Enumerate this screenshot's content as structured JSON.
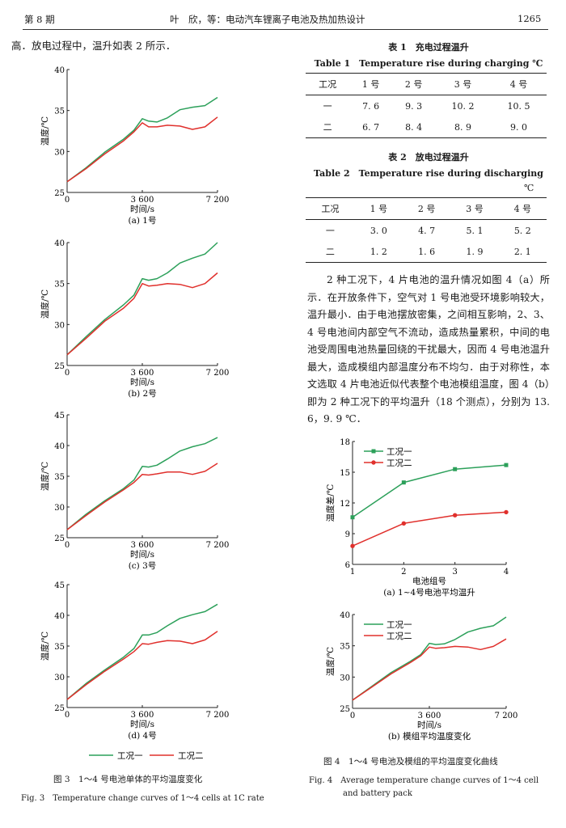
{
  "header": {
    "issue": "第 8 期",
    "authors_title": "叶　欣，等：电动汽车锂离子电池及热加热设计",
    "page": "1265"
  },
  "intro_text": "高．放电过程中，温升如表 2 所示．",
  "table1": {
    "title_cn": "表 1　充电过程温升",
    "title_en": "Table 1　Temperature rise during charging ℃",
    "columns": [
      "工况",
      "1 号",
      "2 号",
      "3 号",
      "4 号"
    ],
    "rows": [
      [
        "一",
        "7. 6",
        "9. 3",
        "10. 2",
        "10. 5"
      ],
      [
        "二",
        "6. 7",
        "8. 4",
        "8. 9",
        "9. 0"
      ]
    ]
  },
  "table2": {
    "title_cn": "表 2　放电过程温升",
    "title_en": "Table 2　Temperature rise during discharging",
    "unit": "℃",
    "columns": [
      "工况",
      "1 号",
      "2 号",
      "3 号",
      "4 号"
    ],
    "rows": [
      [
        "一",
        "3. 0",
        "4. 7",
        "5. 1",
        "5. 2"
      ],
      [
        "二",
        "1. 2",
        "1. 6",
        "1. 9",
        "2. 1"
      ]
    ]
  },
  "paragraph": "2 种工况下，4 片电池的温升情况如图 4（a）所示．在开放条件下，空气对 1 号电池受环境影响较大，温升最小．由于电池摆放密集，之间相互影响，2、3、4 号电池间内部空气不流动，造成热量累积，中间的电池受周围电池热量回绕的干扰最大，因而 4 号电池温升最大，造成模组内部温度分布不均匀．由于对称性，本文选取 4 片电池近似代表整个电池模组温度，图 4（b）即为 2 种工况下的平均温升（18 个测点），分别为 13. 6，9. 9 ℃．",
  "fig3": {
    "legend": [
      "工况一",
      "工况二"
    ],
    "caption_cn": "图 3　1～4 号电池单体的平均温度变化",
    "caption_en": "Fig. 3　Temperature change curves of 1～4 cells at 1C rate"
  },
  "fig4": {
    "caption_cn": "图 4　1～4 号电池及模组的平均温度变化曲线",
    "caption_en_1": "Fig. 4　Average temperature change curves of 1～4 cell",
    "caption_en_2": "and battery pack"
  },
  "colors": {
    "case1": "#2ca05a",
    "case2": "#e0302c",
    "axis": "#222222"
  },
  "chart_data": [
    {
      "id": "fig3a",
      "type": "line",
      "title": "(a) 1号",
      "xlabel": "时间/s",
      "ylabel": "温度/℃",
      "xlim": [
        0,
        7200
      ],
      "ylim": [
        25,
        40
      ],
      "xticks": [
        0,
        3600,
        7200
      ],
      "yticks": [
        25,
        30,
        35,
        40
      ],
      "xtick_labels": [
        "0",
        "3 600",
        "7 200"
      ],
      "series": [
        {
          "name": "工况一",
          "x": [
            0,
            900,
            1800,
            2700,
            3200,
            3600,
            3900,
            4300,
            4800,
            5400,
            6000,
            6600,
            7200
          ],
          "values": [
            26.3,
            28.0,
            29.9,
            31.5,
            32.6,
            34.0,
            33.7,
            33.6,
            34.1,
            35.1,
            35.4,
            35.6,
            36.6
          ]
        },
        {
          "name": "工况二",
          "x": [
            0,
            900,
            1800,
            2700,
            3200,
            3600,
            3900,
            4300,
            4800,
            5400,
            6000,
            6600,
            7200
          ],
          "values": [
            26.3,
            27.9,
            29.7,
            31.3,
            32.4,
            33.5,
            33.0,
            33.0,
            33.2,
            33.1,
            32.7,
            33.0,
            34.2
          ]
        }
      ]
    },
    {
      "id": "fig3b",
      "type": "line",
      "title": "(b) 2号",
      "xlabel": "时间/s",
      "ylabel": "温度/℃",
      "xlim": [
        0,
        7200
      ],
      "ylim": [
        25,
        40
      ],
      "xticks": [
        0,
        3600,
        7200
      ],
      "yticks": [
        25,
        30,
        35,
        40
      ],
      "xtick_labels": [
        "0",
        "3 600",
        "7 200"
      ],
      "series": [
        {
          "name": "工况一",
          "x": [
            0,
            900,
            1800,
            2700,
            3200,
            3600,
            3900,
            4300,
            4800,
            5400,
            6000,
            6600,
            7200
          ],
          "values": [
            26.3,
            28.5,
            30.6,
            32.4,
            33.6,
            35.6,
            35.4,
            35.6,
            36.3,
            37.5,
            38.1,
            38.6,
            40.0
          ]
        },
        {
          "name": "工况二",
          "x": [
            0,
            900,
            1800,
            2700,
            3200,
            3600,
            3900,
            4300,
            4800,
            5400,
            6000,
            6600,
            7200
          ],
          "values": [
            26.3,
            28.3,
            30.4,
            32.0,
            33.2,
            35.0,
            34.7,
            34.8,
            35.0,
            34.9,
            34.5,
            35.0,
            36.3
          ]
        }
      ]
    },
    {
      "id": "fig3c",
      "type": "line",
      "title": "(c) 3号",
      "xlabel": "时间/s",
      "ylabel": "温度/℃",
      "xlim": [
        0,
        7200
      ],
      "ylim": [
        25,
        45
      ],
      "xticks": [
        0,
        3600,
        7200
      ],
      "yticks": [
        25,
        30,
        35,
        40,
        45
      ],
      "xtick_labels": [
        "0",
        "3 600",
        "7 200"
      ],
      "series": [
        {
          "name": "工况一",
          "x": [
            0,
            900,
            1800,
            2700,
            3200,
            3600,
            3900,
            4300,
            4800,
            5400,
            6000,
            6600,
            7200
          ],
          "values": [
            26.3,
            28.8,
            31.0,
            33.0,
            34.4,
            36.6,
            36.5,
            36.8,
            37.8,
            39.1,
            39.8,
            40.3,
            41.3
          ]
        },
        {
          "name": "工况二",
          "x": [
            0,
            900,
            1800,
            2700,
            3200,
            3600,
            3900,
            4300,
            4800,
            5400,
            6000,
            6600,
            7200
          ],
          "values": [
            26.3,
            28.6,
            30.8,
            32.8,
            34.0,
            35.3,
            35.2,
            35.4,
            35.7,
            35.7,
            35.3,
            35.8,
            37.1
          ]
        }
      ]
    },
    {
      "id": "fig3d",
      "type": "line",
      "title": "(d) 4号",
      "xlabel": "时间/s",
      "ylabel": "温度/℃",
      "xlim": [
        0,
        7200
      ],
      "ylim": [
        25,
        45
      ],
      "xticks": [
        0,
        3600,
        7200
      ],
      "yticks": [
        25,
        30,
        35,
        40,
        45
      ],
      "xtick_labels": [
        "0",
        "3 600",
        "7 200"
      ],
      "series": [
        {
          "name": "工况一",
          "x": [
            0,
            900,
            1800,
            2700,
            3200,
            3600,
            3900,
            4300,
            4800,
            5400,
            6000,
            6600,
            7200
          ],
          "values": [
            26.3,
            28.9,
            31.1,
            33.2,
            34.6,
            36.8,
            36.8,
            37.2,
            38.3,
            39.5,
            40.1,
            40.6,
            41.8
          ]
        },
        {
          "name": "工况二",
          "x": [
            0,
            900,
            1800,
            2700,
            3200,
            3600,
            3900,
            4300,
            4800,
            5400,
            6000,
            6600,
            7200
          ],
          "values": [
            26.3,
            28.7,
            30.9,
            32.9,
            34.1,
            35.4,
            35.3,
            35.6,
            35.9,
            35.8,
            35.4,
            36.0,
            37.4
          ]
        }
      ]
    },
    {
      "id": "fig4a",
      "type": "line",
      "title": "(a) 1~4号电池平均温升",
      "xlabel": "电池组号",
      "ylabel": "温度差/℃",
      "xlim": [
        1,
        4
      ],
      "ylim": [
        6,
        18
      ],
      "xticks": [
        1,
        2,
        3,
        4
      ],
      "yticks": [
        6,
        9,
        12,
        15,
        18
      ],
      "xtick_labels": [
        "1",
        "2",
        "3",
        "4"
      ],
      "legend": "top-left",
      "series": [
        {
          "name": "工况一",
          "x": [
            1,
            2,
            3,
            4
          ],
          "values": [
            10.6,
            14.0,
            15.3,
            15.7
          ],
          "marker": "square"
        },
        {
          "name": "工况二",
          "x": [
            1,
            2,
            3,
            4
          ],
          "values": [
            7.8,
            10.0,
            10.8,
            11.1
          ],
          "marker": "circle"
        }
      ]
    },
    {
      "id": "fig4b",
      "type": "line",
      "title": "(b) 模组平均温度变化",
      "xlabel": "时间/s",
      "ylabel": "温度/℃",
      "xlim": [
        0,
        7200
      ],
      "ylim": [
        25,
        40
      ],
      "xticks": [
        0,
        3600,
        7200
      ],
      "yticks": [
        25,
        30,
        35,
        40
      ],
      "xtick_labels": [
        "0",
        "3 600",
        "7 200"
      ],
      "legend": "top-left",
      "series": [
        {
          "name": "工况一",
          "x": [
            0,
            900,
            1800,
            2700,
            3200,
            3600,
            3900,
            4300,
            4800,
            5400,
            6000,
            6600,
            7200
          ],
          "values": [
            26.3,
            28.5,
            30.7,
            32.5,
            33.6,
            35.4,
            35.2,
            35.3,
            36.0,
            37.2,
            37.8,
            38.2,
            39.6
          ]
        },
        {
          "name": "工况二",
          "x": [
            0,
            900,
            1800,
            2700,
            3200,
            3600,
            3900,
            4300,
            4800,
            5400,
            6000,
            6600,
            7200
          ],
          "values": [
            26.3,
            28.4,
            30.5,
            32.3,
            33.4,
            34.8,
            34.6,
            34.7,
            34.9,
            34.8,
            34.4,
            34.9,
            36.1
          ]
        }
      ]
    }
  ]
}
